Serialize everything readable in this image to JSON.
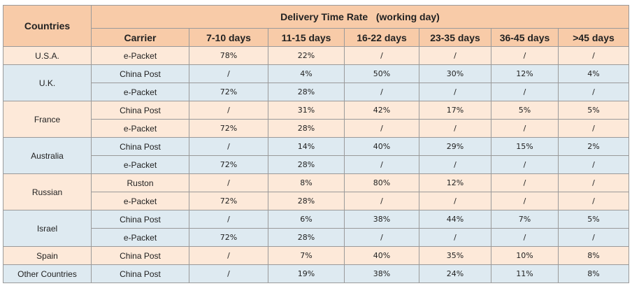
{
  "header": {
    "countries": "Countries",
    "title": "Delivery Time Rate   (working day)",
    "carrier": "Carrier",
    "ranges": [
      "7-10 days",
      "11-15 days",
      "16-22 days",
      "23-35 days",
      "36-45 days",
      ">45 days"
    ]
  },
  "groups": [
    {
      "country": "U.S.A.",
      "rows": [
        {
          "carrier": "e-Packet",
          "values": [
            "78%",
            "22%",
            "/",
            "/",
            "/",
            "/"
          ]
        }
      ]
    },
    {
      "country": "U.K.",
      "rows": [
        {
          "carrier": "China Post",
          "values": [
            "/",
            "4%",
            "50%",
            "30%",
            "12%",
            "4%"
          ]
        },
        {
          "carrier": "e-Packet",
          "values": [
            "72%",
            "28%",
            "/",
            "/",
            "/",
            "/"
          ]
        }
      ]
    },
    {
      "country": "France",
      "rows": [
        {
          "carrier": "China Post",
          "values": [
            "/",
            "31%",
            "42%",
            "17%",
            "5%",
            "5%"
          ]
        },
        {
          "carrier": "e-Packet",
          "values": [
            "72%",
            "28%",
            "/",
            "/",
            "/",
            "/"
          ]
        }
      ]
    },
    {
      "country": "Australia",
      "rows": [
        {
          "carrier": "China Post",
          "values": [
            "/",
            "14%",
            "40%",
            "29%",
            "15%",
            "2%"
          ]
        },
        {
          "carrier": "e-Packet",
          "values": [
            "72%",
            "28%",
            "/",
            "/",
            "/",
            "/"
          ]
        }
      ]
    },
    {
      "country": "Russian",
      "rows": [
        {
          "carrier": "Ruston",
          "values": [
            "/",
            "8%",
            "80%",
            "12%",
            "/",
            "/"
          ]
        },
        {
          "carrier": "e-Packet",
          "values": [
            "72%",
            "28%",
            "/",
            "/",
            "/",
            "/"
          ]
        }
      ]
    },
    {
      "country": "Israel",
      "rows": [
        {
          "carrier": "China Post",
          "values": [
            "/",
            "6%",
            "38%",
            "44%",
            "7%",
            "5%"
          ]
        },
        {
          "carrier": "e-Packet",
          "values": [
            "72%",
            "28%",
            "/",
            "/",
            "/",
            "/"
          ]
        }
      ]
    },
    {
      "country": "Spain",
      "rows": [
        {
          "carrier": "China Post",
          "values": [
            "/",
            "7%",
            "40%",
            "35%",
            "10%",
            "8%"
          ]
        }
      ]
    },
    {
      "country": "Other Countries",
      "rows": [
        {
          "carrier": "China Post",
          "values": [
            "/",
            "19%",
            "38%",
            "24%",
            "11%",
            "8%"
          ]
        }
      ]
    }
  ]
}
